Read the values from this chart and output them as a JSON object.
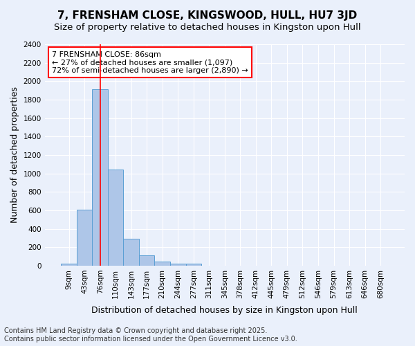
{
  "title": "7, FRENSHAM CLOSE, KINGSWOOD, HULL, HU7 3JD",
  "subtitle": "Size of property relative to detached houses in Kingston upon Hull",
  "xlabel": "Distribution of detached houses by size in Kingston upon Hull",
  "ylabel": "Number of detached properties",
  "footer_line1": "Contains HM Land Registry data © Crown copyright and database right 2025.",
  "footer_line2": "Contains public sector information licensed under the Open Government Licence v3.0.",
  "bin_labels": [
    "9sqm",
    "43sqm",
    "76sqm",
    "110sqm",
    "143sqm",
    "177sqm",
    "210sqm",
    "244sqm",
    "277sqm",
    "311sqm",
    "345sqm",
    "378sqm",
    "412sqm",
    "445sqm",
    "479sqm",
    "512sqm",
    "546sqm",
    "579sqm",
    "613sqm",
    "646sqm",
    "680sqm"
  ],
  "bar_values": [
    20,
    605,
    1910,
    1045,
    295,
    110,
    47,
    20,
    20,
    0,
    0,
    0,
    0,
    0,
    0,
    0,
    0,
    0,
    0,
    0,
    0
  ],
  "bar_color": "#aec6e8",
  "bar_edge_color": "#5a9fd4",
  "vline_x": 2.0,
  "vline_color": "red",
  "annotation_box_text": "7 FRENSHAM CLOSE: 86sqm\n← 27% of detached houses are smaller (1,097)\n72% of semi-detached houses are larger (2,890) →",
  "box_edge_color": "red",
  "ylim": [
    0,
    2400
  ],
  "yticks": [
    0,
    200,
    400,
    600,
    800,
    1000,
    1200,
    1400,
    1600,
    1800,
    2000,
    2200,
    2400
  ],
  "bg_color": "#eaf0fb",
  "plot_bg_color": "#eaf0fb",
  "grid_color": "white",
  "title_fontsize": 11,
  "subtitle_fontsize": 9.5,
  "axis_label_fontsize": 9,
  "tick_fontsize": 7.5,
  "annotation_fontsize": 8,
  "footer_fontsize": 7
}
